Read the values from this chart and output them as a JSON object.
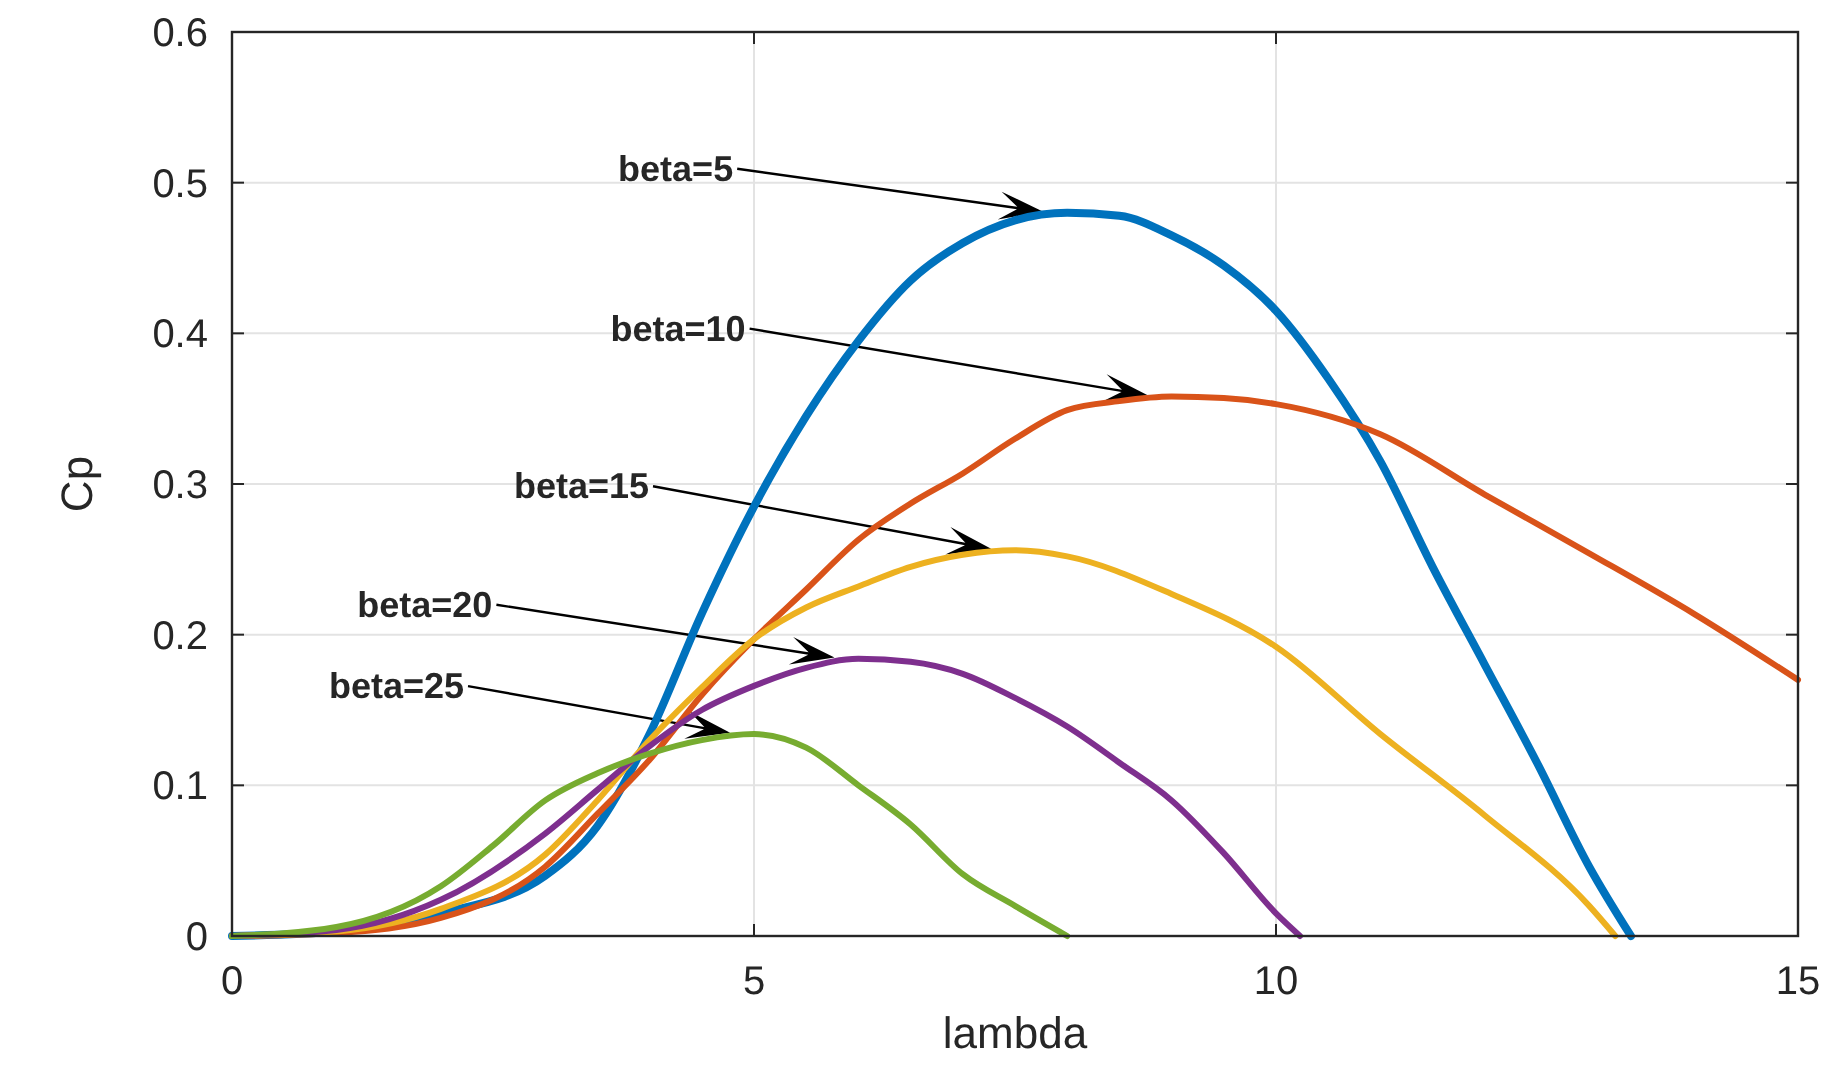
{
  "chart_data": {
    "type": "line",
    "xlabel": "lambda",
    "ylabel": "Cp",
    "xlim": [
      0,
      15
    ],
    "ylim": [
      0,
      0.6
    ],
    "xticks": [
      0,
      5,
      10,
      15
    ],
    "yticks": [
      0,
      0.1,
      0.2,
      0.3,
      0.4,
      0.5,
      0.6
    ],
    "grid": true,
    "line_style": "solid",
    "marker": "none",
    "series": [
      {
        "color": "#0072bd",
        "x": [
          0,
          1,
          2,
          3,
          3.5,
          4,
          4.5,
          5,
          5.5,
          6,
          6.5,
          7,
          7.5,
          8,
          8.5,
          9,
          9.5,
          10,
          10.5,
          11,
          11.5,
          12,
          12.5,
          13,
          13.4
        ],
        "values": [
          0,
          0.003,
          0.015,
          0.04,
          0.073,
          0.134,
          0.214,
          0.285,
          0.345,
          0.395,
          0.435,
          0.46,
          0.475,
          0.48,
          0.478,
          0.465,
          0.445,
          0.415,
          0.37,
          0.315,
          0.245,
          0.18,
          0.115,
          0.046,
          0
        ]
      },
      {
        "color": "#d95319",
        "x": [
          0,
          1,
          2,
          3,
          3.5,
          4,
          4.5,
          5,
          5.5,
          6,
          6.5,
          7,
          7.5,
          8,
          8.5,
          9,
          9.5,
          10,
          11,
          12,
          13,
          14,
          15
        ],
        "values": [
          0,
          0.002,
          0.012,
          0.046,
          0.081,
          0.117,
          0.16,
          0.197,
          0.23,
          0.263,
          0.287,
          0.307,
          0.33,
          0.349,
          0.355,
          0.358,
          0.357,
          0.353,
          0.333,
          0.293,
          0.254,
          0.214,
          0.17
        ]
      },
      {
        "color": "#edb120",
        "x": [
          0,
          1,
          2,
          3,
          3.5,
          4,
          4.5,
          5,
          5.5,
          6,
          6.5,
          7,
          7.5,
          8,
          9,
          10,
          11,
          12,
          13,
          13.25
        ],
        "values": [
          0,
          0.003,
          0.018,
          0.054,
          0.09,
          0.13,
          0.165,
          0.197,
          0.218,
          0.232,
          0.245,
          0.253,
          0.256,
          0.252,
          0.227,
          0.192,
          0.134,
          0.08,
          0.02,
          0
        ]
      },
      {
        "color": "#7e2f8e",
        "x": [
          0,
          1,
          2,
          3,
          3.5,
          4,
          4.5,
          5,
          5.5,
          6,
          6.5,
          7,
          7.5,
          8,
          8.5,
          9,
          9.5,
          10,
          10.23
        ],
        "values": [
          0,
          0.004,
          0.024,
          0.068,
          0.097,
          0.126,
          0.15,
          0.166,
          0.178,
          0.184,
          0.182,
          0.174,
          0.158,
          0.139,
          0.115,
          0.09,
          0.055,
          0.015,
          0
        ]
      },
      {
        "color": "#77ac30",
        "x": [
          0,
          1,
          2,
          2.5,
          3,
          3.5,
          4,
          4.5,
          5,
          5.5,
          6,
          6.5,
          7,
          7.5,
          8
        ],
        "values": [
          0,
          0.006,
          0.033,
          0.06,
          0.09,
          0.108,
          0.121,
          0.13,
          0.134,
          0.125,
          0.1,
          0.074,
          0.041,
          0.02,
          0
        ]
      }
    ],
    "annotations": [
      "beta=5",
      "beta=10",
      "beta=15",
      "beta=20",
      "beta=25"
    ]
  }
}
